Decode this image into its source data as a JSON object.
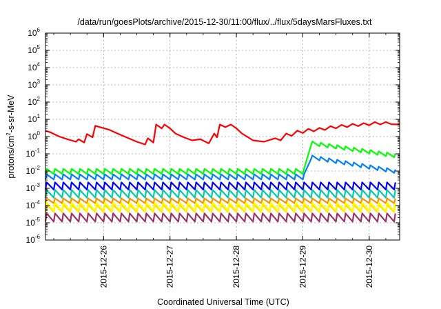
{
  "chart_data": {
    "type": "line",
    "title": "/data/run/goesPlots/archive/2015-12-30/11:00/flux/../flux/5daysMarsFluxes.txt",
    "xlabel": "Coordinated Universal Time (UTC)",
    "ylabel": "protons/cm2-s-sr-MeV",
    "ylabel_parts": {
      "base": "protons/cm",
      "sup": "2",
      "rest": "-s-sr-MeV"
    },
    "y_scale": "log",
    "ylim": [
      1e-06,
      1000000.0
    ],
    "y_ticks": [
      {
        "base": "10",
        "exp": "-6",
        "value": 1e-06
      },
      {
        "base": "10",
        "exp": "-5",
        "value": 1e-05
      },
      {
        "base": "10",
        "exp": "-4",
        "value": 0.0001
      },
      {
        "base": "10",
        "exp": "-3",
        "value": 0.001
      },
      {
        "base": "10",
        "exp": "-2",
        "value": 0.01
      },
      {
        "base": "10",
        "exp": "-1",
        "value": 0.1
      },
      {
        "base": "10",
        "exp": "0",
        "value": 1
      },
      {
        "base": "10",
        "exp": "1",
        "value": 10
      },
      {
        "base": "10",
        "exp": "2",
        "value": 100
      },
      {
        "base": "10",
        "exp": "3",
        "value": 1000
      },
      {
        "base": "10",
        "exp": "4",
        "value": 10000
      },
      {
        "base": "10",
        "exp": "5",
        "value": 100000
      },
      {
        "base": "10",
        "exp": "6",
        "value": 1000000
      }
    ],
    "x_unit": "day",
    "xlim": [
      "2015-12-25T03:00",
      "2015-12-30T11:00"
    ],
    "x_ticks": [
      "2015-12-26",
      "2015-12-27",
      "2015-12-28",
      "2015-12-29",
      "2015-12-30"
    ],
    "grid": true,
    "legend": "none",
    "series": [
      {
        "color": "#ff0000",
        "x": [
          "2015-12-25T03:00",
          "2015-12-25T05:00",
          "2015-12-25T08:00",
          "2015-12-25T11:00",
          "2015-12-25T14:00",
          "2015-12-25T15:00",
          "2015-12-25T17:00",
          "2015-12-25T18:00",
          "2015-12-25T20:00",
          "2015-12-25T21:00",
          "2015-12-26T02:00",
          "2015-12-26T06:00",
          "2015-12-26T09:00",
          "2015-12-26T12:00",
          "2015-12-26T15:00",
          "2015-12-26T16:00",
          "2015-12-26T18:00",
          "2015-12-26T19:00",
          "2015-12-26T21:00",
          "2015-12-26T22:00",
          "2015-12-27T00:00",
          "2015-12-27T02:00",
          "2015-12-27T05:00",
          "2015-12-27T08:00",
          "2015-12-27T11:00",
          "2015-12-27T14:00",
          "2015-12-27T16:00",
          "2015-12-27T17:00",
          "2015-12-27T18:00",
          "2015-12-27T20:00",
          "2015-12-27T22:00",
          "2015-12-28T00:00",
          "2015-12-28T02:00",
          "2015-12-28T06:00",
          "2015-12-28T10:00",
          "2015-12-28T14:00",
          "2015-12-28T16:00",
          "2015-12-28T18:00",
          "2015-12-28T20:00",
          "2015-12-28T22:00",
          "2015-12-29T00:00",
          "2015-12-29T02:00",
          "2015-12-29T04:00",
          "2015-12-29T06:00",
          "2015-12-29T08:00",
          "2015-12-29T10:00",
          "2015-12-29T12:00",
          "2015-12-29T14:00",
          "2015-12-29T16:00",
          "2015-12-29T18:00",
          "2015-12-29T20:00",
          "2015-12-29T22:00",
          "2015-12-30T00:00",
          "2015-12-30T02:00",
          "2015-12-30T04:00",
          "2015-12-30T06:00",
          "2015-12-30T08:00",
          "2015-12-30T11:00"
        ],
        "values": [
          2.2,
          1.7,
          1.0,
          0.7,
          0.5,
          0.7,
          0.45,
          1.4,
          0.9,
          4.2,
          2.5,
          1.3,
          0.8,
          0.5,
          0.35,
          0.8,
          0.45,
          5.0,
          3.0,
          5.0,
          3.0,
          1.5,
          0.9,
          0.6,
          0.7,
          0.4,
          1.5,
          0.9,
          5.0,
          3.5,
          5.0,
          3.0,
          1.5,
          0.6,
          0.5,
          0.8,
          0.6,
          1.5,
          1.1,
          2.2,
          1.6,
          2.8,
          2.0,
          3.2,
          2.4,
          4.0,
          3.0,
          4.8,
          3.5,
          5.5,
          4.0,
          6.0,
          4.5,
          7.0,
          5.0,
          7.0,
          5.2,
          5.0
        ]
      },
      {
        "color": "#00ff00",
        "base": 0.0135,
        "osc": 2.0,
        "jump_at": "2015-12-29T02:00",
        "jump_peak": 0.55,
        "end_value": 0.09
      },
      {
        "color": "#0080ff",
        "base": 0.0065,
        "osc": 2.0,
        "jump_at": "2015-12-29T02:00",
        "jump_peak": 0.085,
        "end_value": 0.011
      },
      {
        "color": "#0000ff",
        "base": 0.0022,
        "osc": 2.6,
        "jump_at": "",
        "jump_peak": 0,
        "end_value": 0.0025
      },
      {
        "color": "#00ccaa",
        "base": 0.0008,
        "osc": 2.8
      },
      {
        "color": "#ffff00",
        "base": 0.00015,
        "osc": 3.2
      },
      {
        "color": "#ff8c00",
        "base": 0.00026,
        "osc": 1.9
      },
      {
        "color": "#ffd700",
        "base": 0.00011,
        "osc": 2.6
      },
      {
        "color": "#993366",
        "base": 3.5e-05,
        "osc": 3.0
      }
    ]
  }
}
